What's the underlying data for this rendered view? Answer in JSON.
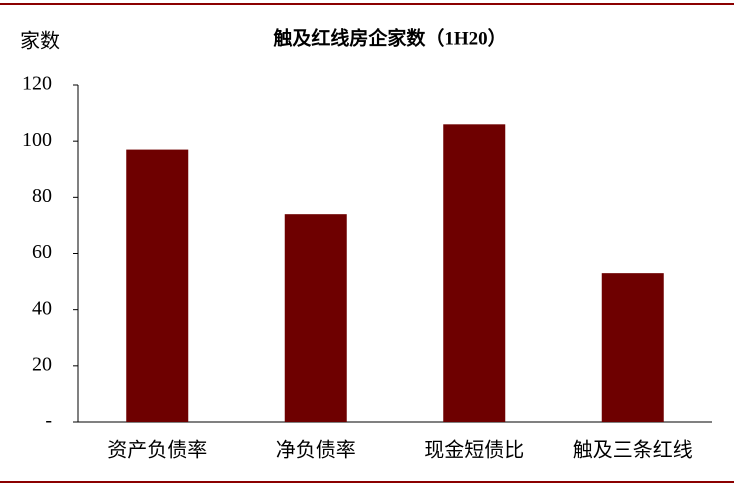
{
  "chart_data": {
    "type": "bar",
    "title": "触及红线房企家数（1H20）",
    "y_label": "家数",
    "categories": [
      "资产负债率",
      "净负债率",
      "现金短债比",
      "触及三条红线"
    ],
    "values": [
      97,
      74,
      106,
      53
    ],
    "color": "#6e0000",
    "ylim": [
      0,
      120
    ],
    "yticks": [
      {
        "value": 0,
        "label": "-"
      },
      20,
      40,
      60,
      80,
      100,
      120
    ]
  }
}
